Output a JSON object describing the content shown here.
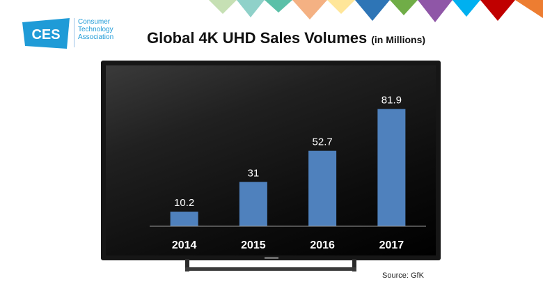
{
  "logo": {
    "mark_text": "CES",
    "lines": [
      "Consumer",
      "Technology",
      "Association"
    ]
  },
  "title": "Global 4K UHD Sales Volumes",
  "title_units": "(in Millions)",
  "source": "Source: GfK",
  "colors": {
    "bar": "#4f81bd",
    "axis": "#9a9a9a",
    "label": "#ffffff",
    "logo": "#1f9bd7"
  },
  "chart_data": {
    "type": "bar",
    "categories": [
      "2014",
      "2015",
      "2016",
      "2017"
    ],
    "values": [
      10.2,
      31,
      52.7,
      81.9
    ],
    "value_labels": [
      "10.2",
      "31",
      "52.7",
      "81.9"
    ],
    "title": "Global 4K UHD Sales Volumes (in Millions)",
    "ylim": [
      0,
      90
    ],
    "grid": false,
    "legend": "none"
  }
}
